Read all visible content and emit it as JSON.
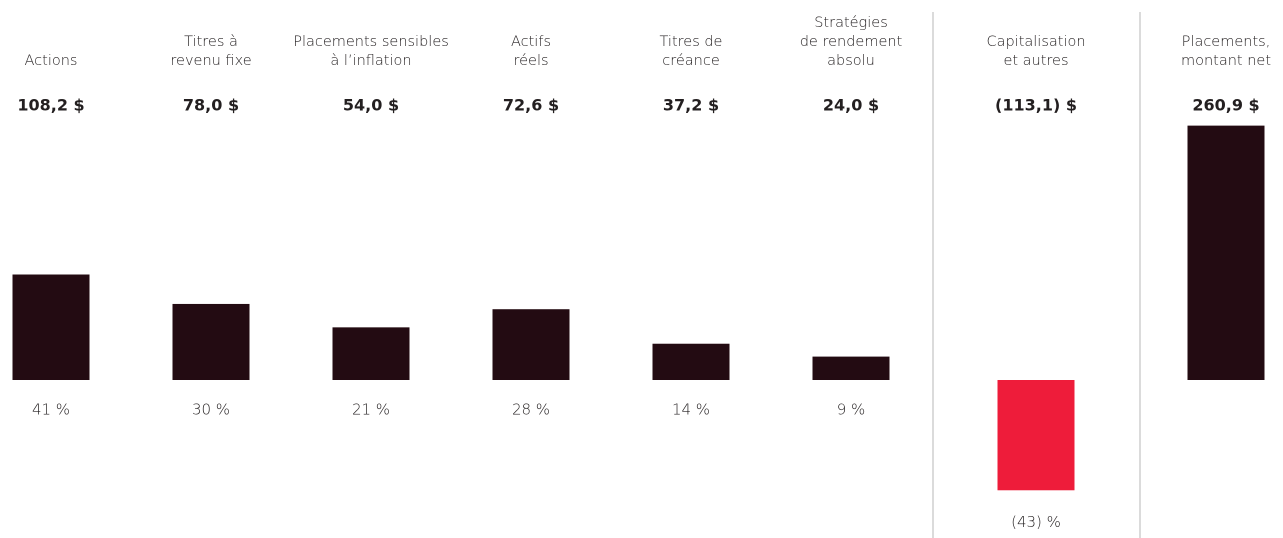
{
  "chart_data": {
    "type": "bar",
    "categories": [
      "Actions",
      "Titres à\nrevenu fixe",
      "Placements sensibles\nà l’inflation",
      "Actifs\nréels",
      "Titres de\ncréance",
      "Stratégies\nde rendement\nabsolu",
      "Capitalisation\net autres",
      "Placements,\nmontant net"
    ],
    "values": [
      108.2,
      78.0,
      54.0,
      72.6,
      37.2,
      24.0,
      -113.1,
      260.9
    ],
    "value_labels": [
      "108,2 $",
      "78,0 $",
      "54,0 $",
      "72,6 $",
      "37,2 $",
      "24,0 $",
      "(113,1) $",
      "260,9 $"
    ],
    "percentages": [
      41,
      30,
      21,
      28,
      14,
      9,
      -43,
      null
    ],
    "percentage_labels": [
      "41 %",
      "30 %",
      "21 %",
      "28 %",
      "14 %",
      "9 %",
      "(43) %",
      null
    ],
    "colors": [
      "#230b12",
      "#230b12",
      "#230b12",
      "#230b12",
      "#230b12",
      "#230b12",
      "#ee1c3a",
      "#230b12"
    ]
  }
}
